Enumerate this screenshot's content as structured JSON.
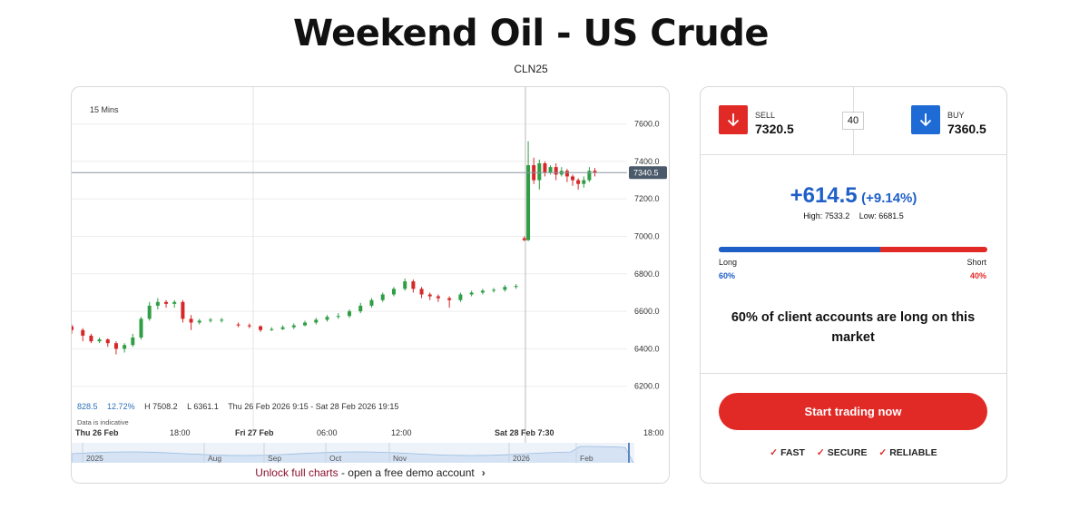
{
  "page": {
    "title": "Weekend Oil - US Crude",
    "instrument_code": "CLN25"
  },
  "chart": {
    "timeframe": "15 Mins",
    "current_price_label": "7340.5",
    "y_ticks": [
      "7600.0",
      "7400.0",
      "7200.0",
      "7000.0",
      "6800.0",
      "6600.0",
      "6400.0",
      "6200.0"
    ],
    "x_ticks": [
      "Thu 26 Feb",
      "18:00",
      "Fri 27 Feb",
      "06:00",
      "12:00",
      "Sat 28 Feb 7:30",
      "18:00"
    ],
    "nav_ticks": [
      "2025",
      "Aug",
      "Sep",
      "Oct",
      "Nov",
      "2026",
      "Feb"
    ],
    "stats": {
      "change": "828.5",
      "change_pct": "12.72%",
      "high": "H 7508.2",
      "low": "L 6361.1",
      "range": "Thu 26 Feb 2026 9:15 - Sat 28 Feb 2026 19:15"
    },
    "indicative_note": "Data is indicative",
    "unlock_link": "Unlock full charts",
    "unlock_rest": " - open a free demo account",
    "colors": {
      "up": "#2f9e44",
      "down": "#d62828",
      "price_tag": "#4a5a6a"
    }
  },
  "chart_data": {
    "type": "candlestick",
    "title": "",
    "ylim": [
      6150,
      7700
    ],
    "timeframe": "15 Mins",
    "points": [
      {
        "x": 0.0,
        "o": 6520,
        "c": 6500,
        "h": 6530,
        "l": 6480
      },
      {
        "x": 0.02,
        "o": 6500,
        "c": 6470,
        "h": 6510,
        "l": 6440
      },
      {
        "x": 0.035,
        "o": 6470,
        "c": 6440,
        "h": 6480,
        "l": 6430
      },
      {
        "x": 0.05,
        "o": 6440,
        "c": 6450,
        "h": 6460,
        "l": 6430
      },
      {
        "x": 0.065,
        "o": 6450,
        "c": 6430,
        "h": 6455,
        "l": 6410
      },
      {
        "x": 0.08,
        "o": 6430,
        "c": 6400,
        "h": 6440,
        "l": 6370
      },
      {
        "x": 0.095,
        "o": 6400,
        "c": 6420,
        "h": 6430,
        "l": 6380
      },
      {
        "x": 0.11,
        "o": 6420,
        "c": 6460,
        "h": 6480,
        "l": 6410
      },
      {
        "x": 0.125,
        "o": 6460,
        "c": 6560,
        "h": 6570,
        "l": 6450
      },
      {
        "x": 0.14,
        "o": 6560,
        "c": 6630,
        "h": 6650,
        "l": 6550
      },
      {
        "x": 0.155,
        "o": 6630,
        "c": 6650,
        "h": 6670,
        "l": 6610
      },
      {
        "x": 0.17,
        "o": 6650,
        "c": 6640,
        "h": 6660,
        "l": 6620
      },
      {
        "x": 0.185,
        "o": 6640,
        "c": 6650,
        "h": 6660,
        "l": 6620
      },
      {
        "x": 0.2,
        "o": 6650,
        "c": 6560,
        "h": 6660,
        "l": 6540
      },
      {
        "x": 0.215,
        "o": 6560,
        "c": 6540,
        "h": 6580,
        "l": 6500
      },
      {
        "x": 0.23,
        "o": 6540,
        "c": 6550,
        "h": 6560,
        "l": 6530
      },
      {
        "x": 0.25,
        "o": 6550,
        "c": 6555,
        "h": 6565,
        "l": 6540
      },
      {
        "x": 0.27,
        "o": 6550,
        "c": 6555,
        "h": 6565,
        "l": 6540
      },
      {
        "x": 0.3,
        "o": 6530,
        "c": 6525,
        "h": 6540,
        "l": 6515
      },
      {
        "x": 0.32,
        "o": 6525,
        "c": 6520,
        "h": 6535,
        "l": 6510
      },
      {
        "x": 0.34,
        "o": 6520,
        "c": 6500,
        "h": 6525,
        "l": 6490
      },
      {
        "x": 0.36,
        "o": 6500,
        "c": 6505,
        "h": 6515,
        "l": 6495
      },
      {
        "x": 0.38,
        "o": 6505,
        "c": 6515,
        "h": 6525,
        "l": 6500
      },
      {
        "x": 0.4,
        "o": 6515,
        "c": 6525,
        "h": 6535,
        "l": 6505
      },
      {
        "x": 0.42,
        "o": 6525,
        "c": 6540,
        "h": 6550,
        "l": 6520
      },
      {
        "x": 0.44,
        "o": 6540,
        "c": 6555,
        "h": 6565,
        "l": 6530
      },
      {
        "x": 0.46,
        "o": 6555,
        "c": 6570,
        "h": 6580,
        "l": 6545
      },
      {
        "x": 0.48,
        "o": 6570,
        "c": 6575,
        "h": 6590,
        "l": 6560
      },
      {
        "x": 0.5,
        "o": 6575,
        "c": 6600,
        "h": 6610,
        "l": 6565
      },
      {
        "x": 0.52,
        "o": 6600,
        "c": 6630,
        "h": 6645,
        "l": 6590
      },
      {
        "x": 0.54,
        "o": 6630,
        "c": 6660,
        "h": 6670,
        "l": 6620
      },
      {
        "x": 0.56,
        "o": 6660,
        "c": 6690,
        "h": 6700,
        "l": 6650
      },
      {
        "x": 0.58,
        "o": 6690,
        "c": 6720,
        "h": 6730,
        "l": 6680
      },
      {
        "x": 0.6,
        "o": 6720,
        "c": 6760,
        "h": 6775,
        "l": 6710
      },
      {
        "x": 0.615,
        "o": 6760,
        "c": 6720,
        "h": 6770,
        "l": 6700
      },
      {
        "x": 0.63,
        "o": 6720,
        "c": 6690,
        "h": 6730,
        "l": 6670
      },
      {
        "x": 0.645,
        "o": 6690,
        "c": 6680,
        "h": 6700,
        "l": 6660
      },
      {
        "x": 0.66,
        "o": 6680,
        "c": 6670,
        "h": 6690,
        "l": 6650
      },
      {
        "x": 0.68,
        "o": 6670,
        "c": 6660,
        "h": 6680,
        "l": 6620
      },
      {
        "x": 0.7,
        "o": 6660,
        "c": 6690,
        "h": 6700,
        "l": 6650
      },
      {
        "x": 0.72,
        "o": 6690,
        "c": 6700,
        "h": 6710,
        "l": 6680
      },
      {
        "x": 0.74,
        "o": 6700,
        "c": 6710,
        "h": 6720,
        "l": 6690
      },
      {
        "x": 0.76,
        "o": 6710,
        "c": 6715,
        "h": 6725,
        "l": 6700
      },
      {
        "x": 0.78,
        "o": 6715,
        "c": 6730,
        "h": 6740,
        "l": 6705
      },
      {
        "x": 0.8,
        "o": 6730,
        "c": 6735,
        "h": 6745,
        "l": 6720
      },
      {
        "x": 0.815,
        "o": 6990,
        "c": 6980,
        "h": 7000,
        "l": 6975
      },
      {
        "x": 0.822,
        "o": 6980,
        "c": 7380,
        "h": 7508,
        "l": 6975
      },
      {
        "x": 0.832,
        "o": 7380,
        "c": 7300,
        "h": 7420,
        "l": 7280
      },
      {
        "x": 0.842,
        "o": 7300,
        "c": 7390,
        "h": 7410,
        "l": 7250
      },
      {
        "x": 0.852,
        "o": 7390,
        "c": 7340,
        "h": 7400,
        "l": 7320
      },
      {
        "x": 0.862,
        "o": 7340,
        "c": 7370,
        "h": 7380,
        "l": 7330
      },
      {
        "x": 0.872,
        "o": 7370,
        "c": 7330,
        "h": 7390,
        "l": 7300
      },
      {
        "x": 0.882,
        "o": 7330,
        "c": 7350,
        "h": 7370,
        "l": 7320
      },
      {
        "x": 0.892,
        "o": 7350,
        "c": 7320,
        "h": 7360,
        "l": 7290
      },
      {
        "x": 0.902,
        "o": 7320,
        "c": 7300,
        "h": 7330,
        "l": 7270
      },
      {
        "x": 0.912,
        "o": 7300,
        "c": 7280,
        "h": 7310,
        "l": 7250
      },
      {
        "x": 0.922,
        "o": 7280,
        "c": 7300,
        "h": 7320,
        "l": 7260
      },
      {
        "x": 0.932,
        "o": 7300,
        "c": 7350,
        "h": 7370,
        "l": 7290
      },
      {
        "x": 0.942,
        "o": 7350,
        "c": 7340,
        "h": 7365,
        "l": 7320
      }
    ]
  },
  "trade": {
    "sell_label": "SELL",
    "sell_price": "7320.5",
    "buy_label": "BUY",
    "buy_price": "7360.5",
    "spread": "40",
    "change": "+614.5",
    "change_pct": "(+9.14%)",
    "high": "High: 7533.2",
    "low": "Low: 6681.5",
    "long_label": "Long",
    "short_label": "Short",
    "long_pct": "60%",
    "short_pct": "40%",
    "long_fraction": 0.6,
    "client_text_pre": "60% of client accounts are ",
    "client_text_bold": "long",
    "client_text_post": " on this market",
    "cta": "Start trading now",
    "features": [
      "FAST",
      "SECURE",
      "RELIABLE"
    ],
    "colors": {
      "sell": "#e12a26",
      "buy": "#1e6bd6",
      "long": "#1e5fc8",
      "short": "#e12a26"
    }
  }
}
